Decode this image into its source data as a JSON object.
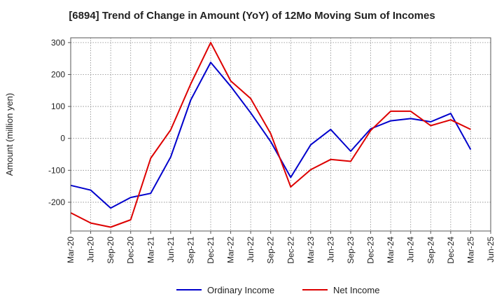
{
  "chart_data": {
    "type": "line",
    "title": "[6894]  Trend of Change in Amount (YoY) of 12Mo Moving Sum of Incomes",
    "ylabel": "Amount (million yen)",
    "xlabel": "",
    "ylim": [
      -290,
      315
    ],
    "yticks": [
      300,
      200,
      100,
      0,
      -100,
      -200
    ],
    "ytick_labels": [
      "300",
      "200",
      "100",
      "0",
      "-100",
      "-200"
    ],
    "x": [
      "Mar-20",
      "Jun-20",
      "Sep-20",
      "Dec-20",
      "Mar-21",
      "Jun-21",
      "Sep-21",
      "Dec-21",
      "Mar-22",
      "Jun-22",
      "Sep-22",
      "Dec-22",
      "Mar-23",
      "Jun-23",
      "Sep-23",
      "Dec-23",
      "Mar-24",
      "Jun-24",
      "Sep-24",
      "Dec-24",
      "Mar-25",
      "Jun-25"
    ],
    "xtick_labels": [
      "Mar-20",
      "Jun-20",
      "Sep-20",
      "Dec-20",
      "Mar-21",
      "Jun-21",
      "Sep-21",
      "Dec-21",
      "Mar-22",
      "Jun-22",
      "Sep-22",
      "Dec-22",
      "Mar-23",
      "Jun-23",
      "Sep-23",
      "Dec-23",
      "Mar-24",
      "Jun-24",
      "Sep-24",
      "Dec-24",
      "Mar-25",
      "Jun-25"
    ],
    "grid": true,
    "legend_position": "bottom-center",
    "series": [
      {
        "name": "Ordinary Income",
        "color": "#0000cc",
        "values": [
          -147,
          -162,
          -218,
          -185,
          -172,
          -58,
          120,
          238,
          163,
          80,
          -10,
          -122,
          -20,
          28,
          -40,
          30,
          55,
          62,
          52,
          78,
          -35,
          null
        ]
      },
      {
        "name": "Net Income",
        "color": "#dd0000",
        "values": [
          -233,
          -265,
          -278,
          -255,
          -62,
          27,
          170,
          300,
          180,
          125,
          15,
          -152,
          -98,
          -66,
          -72,
          25,
          85,
          85,
          40,
          58,
          28,
          null
        ]
      }
    ]
  }
}
